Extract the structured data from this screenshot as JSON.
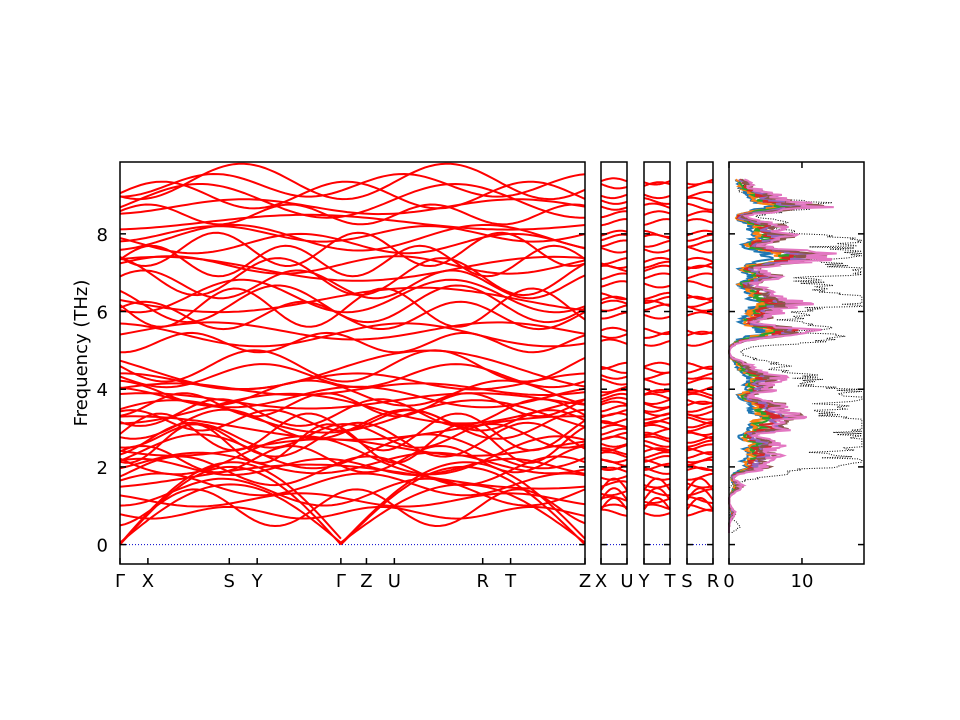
{
  "chart_data": {
    "type": "line",
    "ylabel": "Frequency (THz)",
    "ylim": [
      -0.5,
      9.85
    ],
    "yticks": [
      0,
      2,
      4,
      6,
      8
    ],
    "band_color": "#ff0000",
    "zero_line_color": "#0000cc",
    "panels": [
      {
        "kind": "band",
        "labels": [
          "Γ",
          "X",
          "S",
          "Y",
          "Γ",
          "Z",
          "U",
          "R",
          "T",
          "Z"
        ],
        "xlim": [
          0,
          10
        ],
        "label_positions": [
          0,
          0.6,
          2.35,
          2.95,
          4.75,
          5.3,
          5.9,
          7.8,
          8.4,
          10
        ]
      },
      {
        "kind": "band",
        "labels": [
          "X",
          "U"
        ],
        "xlim": [
          0,
          1
        ]
      },
      {
        "kind": "band",
        "labels": [
          "Y",
          "T"
        ],
        "xlim": [
          0,
          1
        ]
      },
      {
        "kind": "band",
        "labels": [
          "S",
          "R"
        ],
        "xlim": [
          0,
          1
        ]
      },
      {
        "kind": "dos",
        "xlim": [
          0,
          18.5
        ],
        "xticks": [
          0,
          10
        ],
        "total_color": "#000000",
        "projected_colors": [
          "#1f77b4",
          "#ff7f0e",
          "#2ca02c",
          "#d62728",
          "#9467bd",
          "#8c564b",
          "#e377c2"
        ]
      }
    ],
    "dispersions": {
      "level_sets_THz": [
        [
          0.82,
          0.95,
          1.15,
          1.35,
          1.55,
          1.75,
          1.9
        ],
        [
          2.0,
          2.1,
          2.2,
          2.3,
          2.4,
          2.5,
          2.6,
          2.7,
          2.8,
          2.9,
          3.0,
          3.1,
          3.2,
          3.3,
          3.4,
          3.5,
          3.6,
          3.7,
          3.8,
          3.9,
          4.0,
          4.2,
          4.35,
          4.5,
          4.6
        ],
        [
          5.2,
          5.4,
          5.5
        ],
        [
          5.9,
          6.1,
          6.2,
          6.3,
          6.4
        ],
        [
          6.7,
          6.9,
          7.1,
          7.2,
          7.3
        ],
        [
          7.6,
          7.75,
          7.9,
          8.0,
          8.3
        ],
        [
          8.5,
          8.7,
          8.85,
          9.0,
          9.25,
          9.35
        ]
      ]
    },
    "dos_profile": {
      "total_peaks": [
        [
          0.5,
          1.5
        ],
        [
          1.8,
          4.5
        ],
        [
          2.0,
          9.0
        ],
        [
          2.2,
          12.5
        ],
        [
          2.5,
          15.0
        ],
        [
          2.7,
          17.0
        ],
        [
          3.0,
          16.0
        ],
        [
          3.2,
          15.5
        ],
        [
          3.5,
          13.5
        ],
        [
          3.8,
          14.5
        ],
        [
          4.0,
          11.0
        ],
        [
          4.3,
          10.5
        ],
        [
          4.6,
          6.5
        ],
        [
          4.8,
          1.5
        ],
        [
          5.0,
          0.8
        ],
        [
          5.3,
          15.0
        ],
        [
          5.6,
          10.5
        ],
        [
          5.9,
          8.0
        ],
        [
          6.2,
          14.5
        ],
        [
          6.4,
          16.0
        ],
        [
          6.7,
          11.0
        ],
        [
          7.0,
          13.5
        ],
        [
          7.2,
          10.5
        ],
        [
          7.5,
          17.5
        ],
        [
          7.8,
          14.0
        ],
        [
          8.0,
          8.5
        ],
        [
          8.3,
          6.5
        ],
        [
          8.7,
          12.5
        ],
        [
          8.9,
          4.0
        ],
        [
          9.3,
          2.0
        ]
      ],
      "projected_peaks": [
        [
          0.8,
          0.6
        ],
        [
          1.5,
          1.4
        ],
        [
          2.0,
          3.8
        ],
        [
          2.3,
          4.5
        ],
        [
          2.6,
          5.2
        ],
        [
          3.0,
          5.8
        ],
        [
          3.3,
          7.0
        ],
        [
          3.6,
          5.5
        ],
        [
          4.0,
          4.2
        ],
        [
          4.3,
          5.0
        ],
        [
          4.6,
          2.0
        ],
        [
          5.3,
          1.2
        ],
        [
          5.5,
          8.5
        ],
        [
          5.9,
          4.5
        ],
        [
          6.2,
          7.0
        ],
        [
          6.5,
          4.5
        ],
        [
          6.9,
          5.5
        ],
        [
          7.3,
          6.5
        ],
        [
          7.5,
          8.0
        ],
        [
          7.9,
          6.5
        ],
        [
          8.2,
          5.5
        ],
        [
          8.7,
          9.0
        ],
        [
          9.0,
          4.5
        ],
        [
          9.3,
          2.0
        ]
      ]
    }
  }
}
